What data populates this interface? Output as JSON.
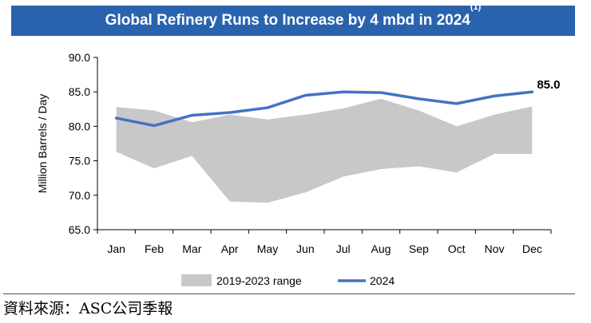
{
  "chart_data": {
    "type": "area",
    "title_main": "Global Refinery Runs to Increase by 4 mbd in 2024",
    "title_sup": "(1)",
    "ylabel": "Million Barrels / Day",
    "xlabel": "",
    "ylim": [
      65.0,
      90.0
    ],
    "yticks": [
      "65.0",
      "70.0",
      "75.0",
      "80.0",
      "85.0",
      "90.0"
    ],
    "categories": [
      "Jan",
      "Feb",
      "Mar",
      "Apr",
      "May",
      "Jun",
      "Jul",
      "Aug",
      "Sep",
      "Oct",
      "Nov",
      "Dec"
    ],
    "series": [
      {
        "name": "2019-2023 range",
        "kind": "range",
        "color": "#c8c8c8",
        "low": [
          76.3,
          73.9,
          75.7,
          69.1,
          68.9,
          70.4,
          72.7,
          73.8,
          74.2,
          73.3,
          76.0,
          76.0
        ],
        "high": [
          82.8,
          82.3,
          80.6,
          81.7,
          81.0,
          81.7,
          82.6,
          84.0,
          82.3,
          80.0,
          81.7,
          82.9
        ]
      },
      {
        "name": "2024",
        "kind": "line",
        "color": "#4472c4",
        "values": [
          81.2,
          80.1,
          81.6,
          82.0,
          82.7,
          84.5,
          85.0,
          84.9,
          84.0,
          83.3,
          84.4,
          85.0
        ]
      }
    ],
    "annotations": [
      {
        "text": "85.0",
        "category": "Dec",
        "value": 85.0
      }
    ],
    "legend": {
      "position": "bottom",
      "items": [
        "2019-2023 range",
        "2024"
      ]
    }
  },
  "source_text": "資料來源：ASC公司季報"
}
